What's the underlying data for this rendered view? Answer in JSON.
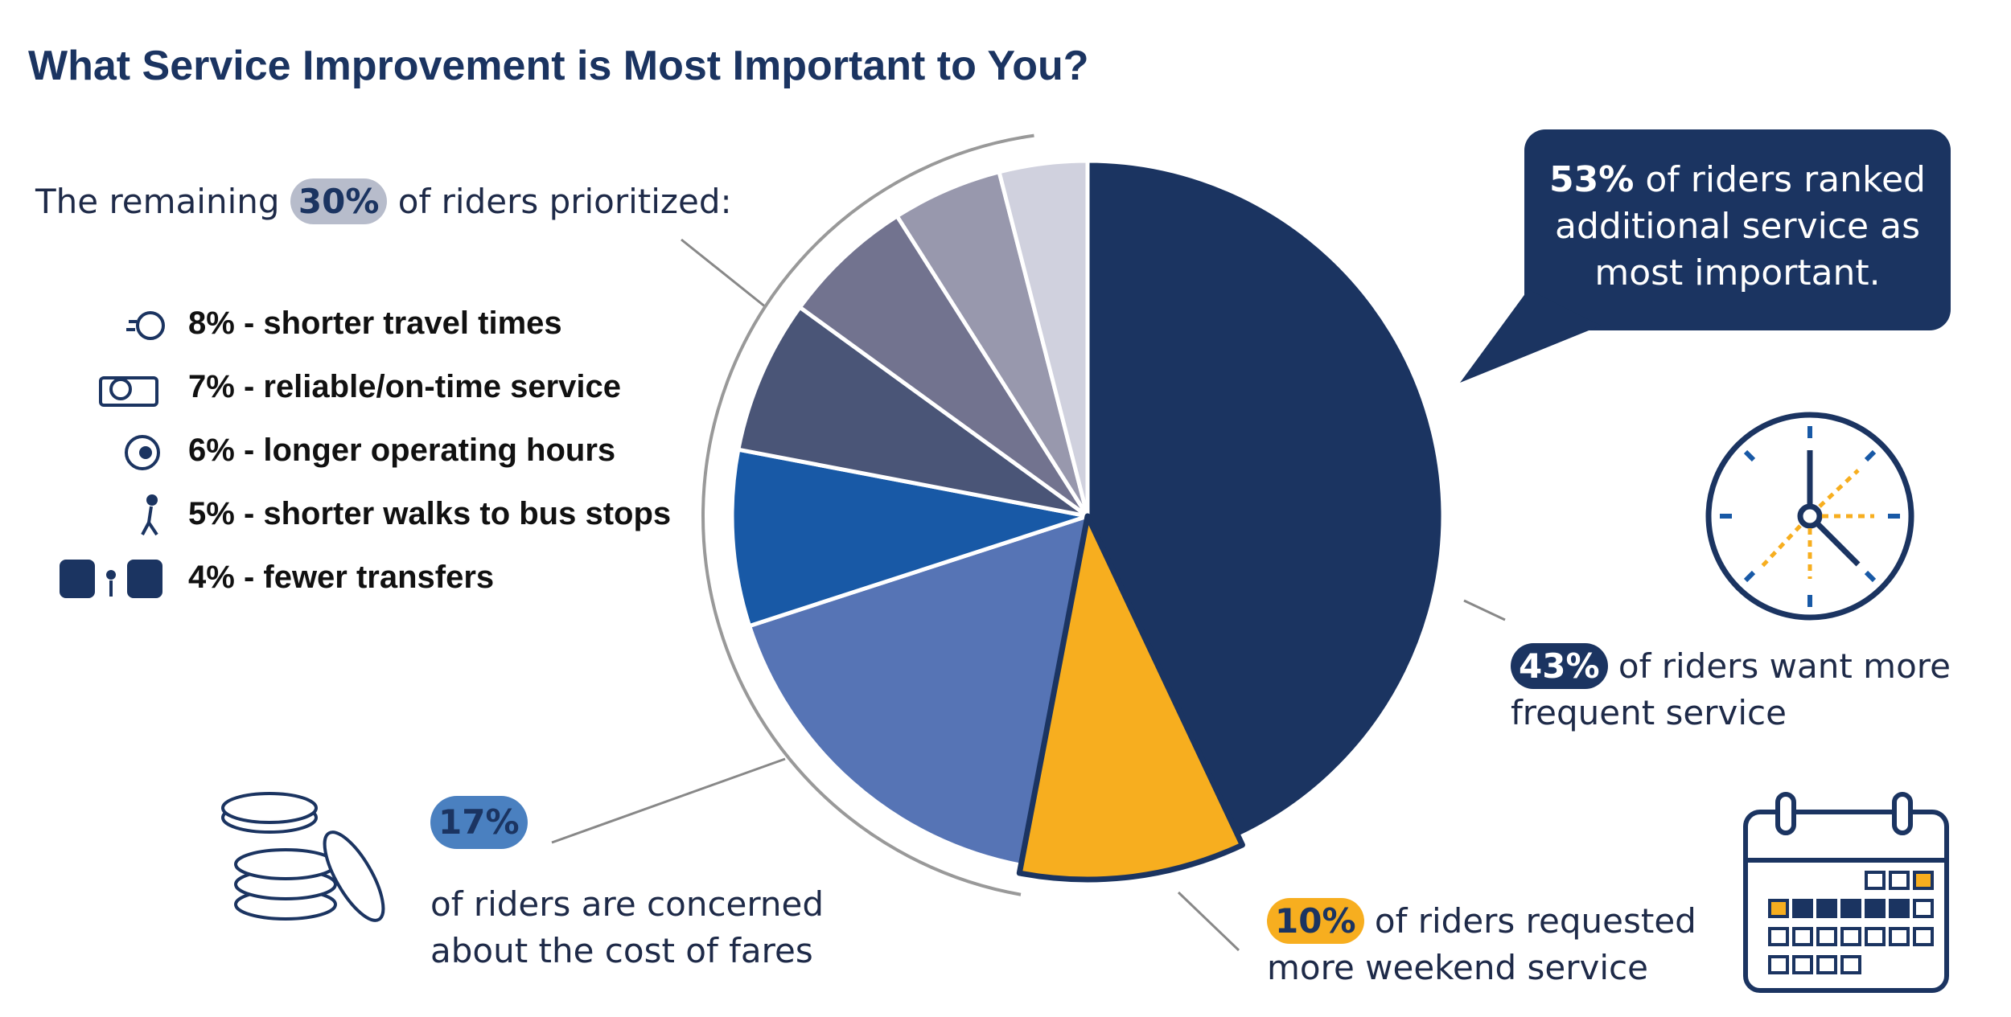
{
  "chart_data": {
    "type": "pie",
    "title": "What Service Improvement is Most Important to You?",
    "categories": [
      "of riders want more frequent service",
      "of riders requested more weekend service",
      "of riders are concerned about the cost of fares",
      "- shorter travel times",
      "- reliable/on-time service",
      "- longer operating hours",
      "- shorter walks to bus stops",
      "- fewer transfers"
    ],
    "values": [
      43,
      10,
      17,
      8,
      7,
      6,
      5,
      4
    ],
    "value_labels": [
      "43%",
      "10%",
      "17%",
      "8%",
      "7%",
      "6%",
      "5%",
      "4%"
    ],
    "colors": [
      "#1b3461",
      "#f7ae1f",
      "#5674b5",
      "#1859a6",
      "#4a5577",
      "#72738f",
      "#9898ad",
      "#d0d1de"
    ],
    "callout": {
      "label": "53%",
      "text": "of riders ranked additional service as most important."
    },
    "remaining": {
      "before": "The remaining",
      "label": "30%",
      "after": "of riders prioritized:"
    }
  }
}
